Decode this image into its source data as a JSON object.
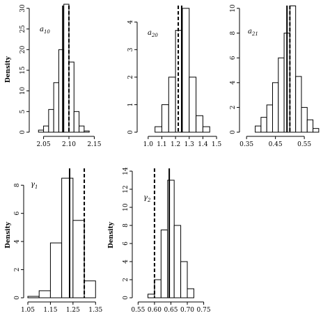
{
  "chart_data": [
    {
      "type": "bar",
      "panel_label": "a10",
      "ylabel": "Density",
      "xlim": [
        2.03,
        2.17
      ],
      "ylim": [
        0,
        30
      ],
      "xticks": [
        2.05,
        2.1,
        2.15
      ],
      "xtick_labels": [
        "2.05",
        "2.10",
        "2.15"
      ],
      "yticks": [
        0,
        5,
        10,
        15,
        20,
        25,
        30
      ],
      "bin_width": 0.01,
      "bins": [
        2.04,
        2.05,
        2.06,
        2.07,
        2.08,
        2.09,
        2.1,
        2.11,
        2.12,
        2.13
      ],
      "values": [
        0.5,
        1.5,
        5.5,
        12,
        20,
        31,
        17,
        5,
        1.5,
        0.3
      ],
      "solid_line": 2.088,
      "dashed_line": 2.1
    },
    {
      "type": "bar",
      "panel_label": "a20",
      "ylabel": "",
      "xlim": [
        0.95,
        1.52
      ],
      "ylim": [
        0,
        4.5
      ],
      "xticks": [
        1.0,
        1.1,
        1.2,
        1.3,
        1.4,
        1.5
      ],
      "xtick_labels": [
        "1.0",
        "1.1",
        "1.2",
        "1.3",
        "1.4",
        "1.5"
      ],
      "yticks": [
        0,
        1,
        2,
        3,
        4
      ],
      "bin_width": 0.05,
      "bins": [
        1.05,
        1.1,
        1.15,
        1.2,
        1.25,
        1.3,
        1.35,
        1.4
      ],
      "values": [
        0.2,
        1.0,
        2.0,
        3.7,
        4.5,
        2.0,
        0.6,
        0.2
      ],
      "solid_line": 1.245,
      "dashed_line": 1.22
    },
    {
      "type": "bar",
      "panel_label": "a21",
      "ylabel": "",
      "xlim": [
        0.34,
        0.61
      ],
      "ylim": [
        0,
        10
      ],
      "xticks": [
        0.35,
        0.45,
        0.55
      ],
      "xtick_labels": [
        "0.35",
        "0.45",
        "0.55"
      ],
      "yticks": [
        0,
        2,
        4,
        6,
        8,
        10
      ],
      "bin_width": 0.02,
      "bins": [
        0.38,
        0.4,
        0.42,
        0.44,
        0.46,
        0.48,
        0.5,
        0.52,
        0.54,
        0.56,
        0.58
      ],
      "values": [
        0.5,
        1.2,
        2.2,
        4.0,
        6.0,
        8.0,
        10.2,
        4.5,
        2.0,
        1.0,
        0.3
      ],
      "solid_line": 0.49,
      "dashed_line": 0.5
    },
    {
      "type": "bar",
      "panel_label": "γ1",
      "ylabel": "Density",
      "xlim": [
        1.05,
        1.38
      ],
      "ylim": [
        0,
        9
      ],
      "xticks": [
        1.05,
        1.15,
        1.25,
        1.35
      ],
      "xtick_labels": [
        "1.05",
        "1.15",
        "1.25",
        "1.35"
      ],
      "yticks": [
        0,
        2,
        4,
        6,
        8
      ],
      "bin_width": 0.05,
      "bins": [
        1.05,
        1.1,
        1.15,
        1.2,
        1.25,
        1.3
      ],
      "values": [
        0.1,
        0.5,
        3.9,
        8.5,
        5.5,
        1.2
      ],
      "solid_line": 1.235,
      "dashed_line": 1.3
    },
    {
      "type": "bar",
      "panel_label": "γ2",
      "ylabel": "Density",
      "xlim": [
        0.545,
        0.77
      ],
      "ylim": [
        0,
        14
      ],
      "xticks": [
        0.55,
        0.6,
        0.65,
        0.7,
        0.75
      ],
      "xtick_labels": [
        "0.55",
        "0.60",
        "0.65",
        "0.70",
        "0.75"
      ],
      "yticks": [
        0,
        2,
        4,
        6,
        8,
        10,
        12,
        14
      ],
      "bin_width": 0.02,
      "bins": [
        0.58,
        0.6,
        0.62,
        0.64,
        0.66,
        0.68,
        0.7
      ],
      "values": [
        0.4,
        2.0,
        7.5,
        13.0,
        8.0,
        4.0,
        1.0
      ],
      "solid_line": 0.645,
      "dashed_line": 0.6
    }
  ]
}
